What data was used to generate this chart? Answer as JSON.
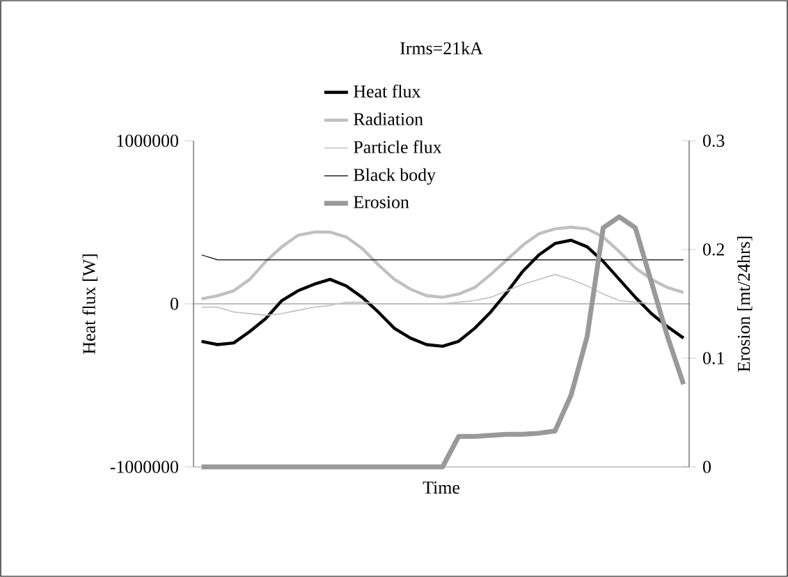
{
  "chart_data": {
    "type": "line",
    "title": "Irms=21kA",
    "xlabel": "Time",
    "ylabel": "Heat flux [W]",
    "y2label": "Erosion [mt/24hrs]",
    "categories": [
      null,
      null,
      null,
      null,
      null,
      null,
      null,
      null,
      null,
      null,
      null,
      null,
      null,
      null,
      null,
      null,
      null,
      null,
      null,
      null,
      null,
      null,
      null,
      null,
      null,
      null,
      null,
      null,
      null,
      null,
      null
    ],
    "series": [
      {
        "name": "Heat flux",
        "color": "#000000",
        "values": [
          -230000,
          -250000,
          -240000,
          -170000,
          -90000,
          20000,
          80000,
          120000,
          150000,
          110000,
          40000,
          -50000,
          -150000,
          -210000,
          -250000,
          -260000,
          -230000,
          -150000,
          -50000,
          70000,
          200000,
          300000,
          370000,
          390000,
          350000,
          260000,
          150000,
          40000,
          -60000,
          -140000,
          -210000
        ]
      },
      {
        "name": "Radiation",
        "color": "#c0c0c0",
        "values": [
          30000,
          50000,
          80000,
          150000,
          260000,
          350000,
          420000,
          440000,
          440000,
          410000,
          340000,
          240000,
          150000,
          90000,
          50000,
          40000,
          60000,
          100000,
          180000,
          270000,
          360000,
          430000,
          460000,
          470000,
          460000,
          410000,
          320000,
          220000,
          150000,
          100000,
          70000
        ]
      },
      {
        "name": "Particle flux",
        "color": "#c0c0c0",
        "values": [
          -20000,
          -20000,
          -50000,
          -60000,
          -70000,
          -60000,
          -40000,
          -20000,
          -10000,
          10000,
          10000,
          0,
          0,
          0,
          0,
          0,
          10000,
          20000,
          40000,
          80000,
          120000,
          150000,
          180000,
          150000,
          110000,
          60000,
          20000,
          10000,
          0,
          0,
          0
        ]
      },
      {
        "name": "Black body",
        "color": "#000000",
        "values": [
          300000,
          270000,
          270000,
          270000,
          270000,
          270000,
          270000,
          270000,
          270000,
          270000,
          270000,
          270000,
          270000,
          270000,
          270000,
          270000,
          270000,
          270000,
          270000,
          270000,
          270000,
          270000,
          270000,
          270000,
          270000,
          270000,
          270000,
          270000,
          270000,
          270000,
          270000
        ]
      },
      {
        "name": "Erosion",
        "color": "#999999",
        "axis": "y2",
        "values": [
          0,
          0,
          0,
          0,
          0,
          0,
          0,
          0,
          0,
          0,
          0,
          0,
          0,
          0,
          0,
          0,
          0.028,
          0.028,
          0.029,
          0.03,
          0.03,
          0.031,
          0.033,
          0.066,
          0.12,
          0.22,
          0.23,
          0.22,
          0.17,
          0.12,
          0.076
        ]
      }
    ],
    "ylim": [
      -1000000,
      1000000
    ],
    "yticks": [
      -1000000,
      0,
      1000000
    ],
    "y2lim": [
      0,
      0.3
    ],
    "y2ticks": [
      0,
      0.1,
      0.2,
      0.3
    ],
    "legend": "top"
  }
}
